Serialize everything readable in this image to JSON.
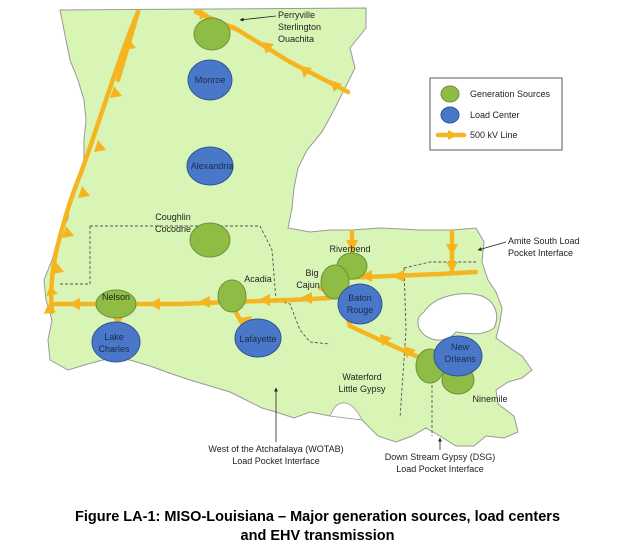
{
  "legend": {
    "generation": "Generation Sources",
    "load": "Load Center",
    "line": "500 kV Line"
  },
  "colors": {
    "land": "#d9f5b5",
    "generation": "#8fbc45",
    "load": "#4a78c8",
    "line": "#f5b521"
  },
  "generation_labels": {
    "perryville": "Perryville",
    "sterlington": "Sterlington",
    "ouachita": "Ouachita",
    "coughlin": "Coughlin",
    "cocodrie": "Cocodrie",
    "acadia": "Acadia",
    "riverbend": "Riverbend",
    "big": "Big",
    "cajun": "Cajun",
    "nelson": "Nelson",
    "waterford": "Waterford",
    "little_gypsy": "Little Gypsy",
    "ninemile": "Ninemile"
  },
  "load_labels": {
    "monroe": "Monroe",
    "alexandria": "Alexandria",
    "baton": "Baton",
    "rouge": "Rouge",
    "lake": "Lake",
    "charles": "Charles",
    "lafayette": "Lafayette",
    "new": "New",
    "orleans": "Orleans"
  },
  "interfaces": {
    "amite_1": "Amite South Load",
    "amite_2": "Pocket Interface",
    "wotab_1": "West of the Atchafalaya (WOTAB)",
    "wotab_2": "Load Pocket Interface",
    "dsg_1": "Down Stream Gypsy (DSG)",
    "dsg_2": "Load Pocket Interface"
  },
  "caption": {
    "line1": "Figure LA-1: MISO-Louisiana – Major generation sources, load centers",
    "line2": "and EHV transmission"
  }
}
